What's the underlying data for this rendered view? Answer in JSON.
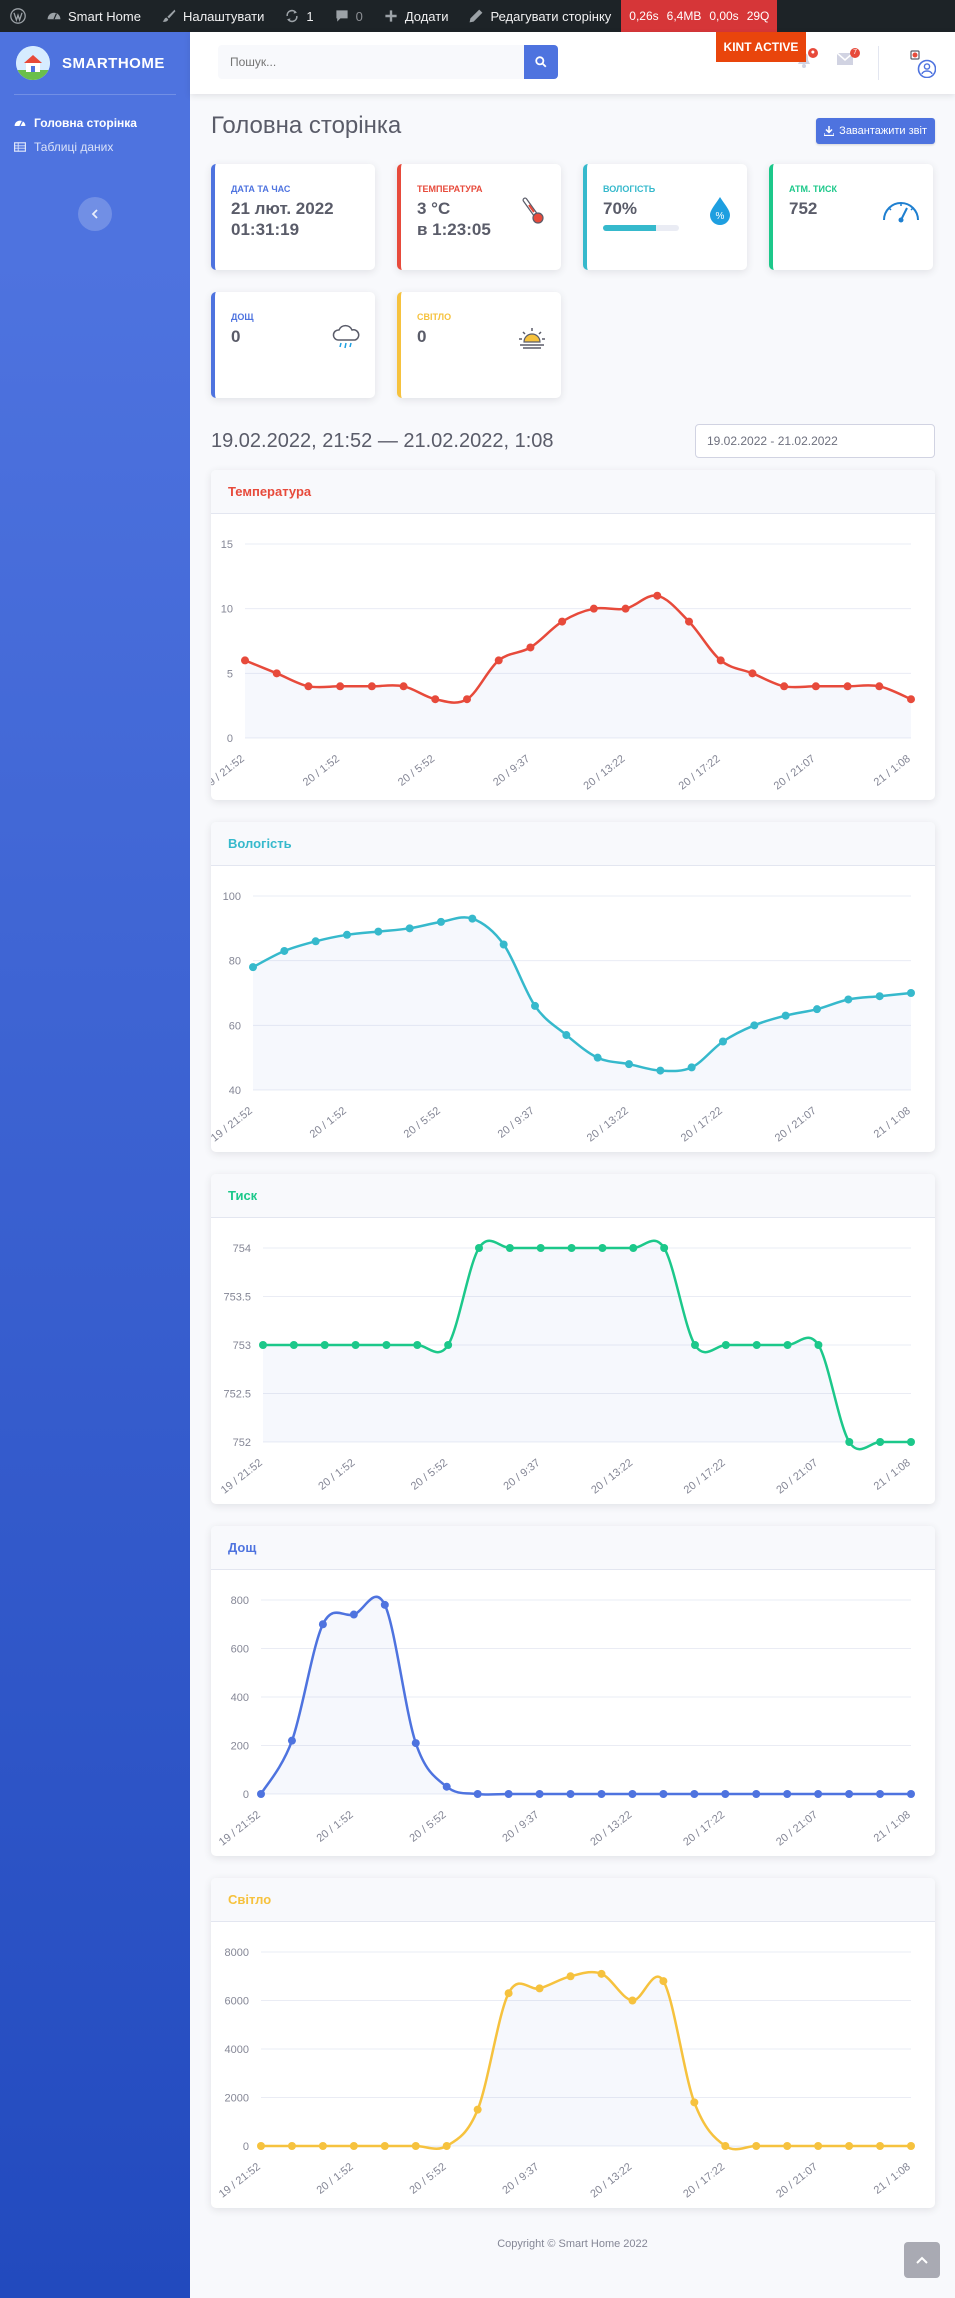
{
  "wp_admin_bar": {
    "site_name": "Smart Home",
    "customize": "Налаштувати",
    "updates_count": "1",
    "comments_count": "0",
    "add_new": "Додати",
    "edit_page": "Редагувати сторінку",
    "perf": [
      "0,26s",
      "6,4MB",
      "0,00s",
      "29Q"
    ]
  },
  "kint_badge": "KINT ACTIVE",
  "sidebar": {
    "brand": "SMARTHOME",
    "items": [
      {
        "label": "Головна сторінка",
        "icon": "tachometer-icon",
        "active": true
      },
      {
        "label": "Таблиці даних",
        "icon": "table-icon",
        "active": false
      }
    ]
  },
  "topbar": {
    "search_placeholder": "Пошук...",
    "alerts_badge": "●",
    "messages_badge": "7"
  },
  "page": {
    "title": "Головна сторінка",
    "report_button": "Завантажити звіт"
  },
  "cards": [
    {
      "label": "Дата та час",
      "line1": "21 лют. 2022",
      "line2": "01:31:19",
      "color": "#4e73df",
      "icon": "calendar-icon"
    },
    {
      "label": "Температура",
      "line1": "3 °C",
      "line2": "в 1:23:05",
      "color": "#e74a3b",
      "icon": "thermometer-icon"
    },
    {
      "label": "Вологість",
      "line1": "70%",
      "progress": 70,
      "color": "#36b9cc",
      "icon": "humidity-drop-icon"
    },
    {
      "label": "Атм. тиск",
      "line1": "752",
      "color": "#1cc88a",
      "icon": "pressure-gauge-icon"
    },
    {
      "label": "Дощ",
      "line1": "0",
      "color": "#4e73df",
      "icon": "rain-cloud-icon"
    },
    {
      "label": "Світло",
      "line1": "0",
      "color": "#f6c23e",
      "icon": "sun-icon"
    }
  ],
  "date_range": {
    "heading": "19.02.2022, 21:52 — 21.02.2022, 1:08",
    "input_value": "19.02.2022 - 21.02.2022"
  },
  "x_ticks": [
    "19 / 21:52",
    "20 / 1:52",
    "20 / 5:52",
    "20 / 9:37",
    "20 / 13:22",
    "20 / 17:22",
    "20 / 21:07",
    "21 / 1:08"
  ],
  "chart_data": [
    {
      "type": "line",
      "title": "Температура",
      "color": "#e74a3b",
      "ylim": [
        0,
        15
      ],
      "yticks": [
        "0",
        "5",
        "10",
        "15"
      ],
      "values": [
        6,
        5,
        4,
        4,
        4,
        4,
        3,
        3,
        6,
        7,
        9,
        10,
        10,
        11,
        9,
        6,
        5,
        4,
        4,
        4,
        4,
        3
      ]
    },
    {
      "type": "line",
      "title": "Вологість",
      "color": "#36b9cc",
      "ylim": [
        40,
        100
      ],
      "yticks": [
        "40",
        "60",
        "80",
        "100"
      ],
      "values": [
        78,
        83,
        86,
        88,
        89,
        90,
        92,
        93,
        85,
        66,
        57,
        50,
        48,
        46,
        47,
        55,
        60,
        63,
        65,
        68,
        69,
        70
      ]
    },
    {
      "type": "line",
      "title": "Тиск",
      "color": "#1cc88a",
      "ylim": [
        752,
        754
      ],
      "yticks": [
        "752",
        "752.5",
        "753",
        "753.5",
        "754"
      ],
      "values": [
        753,
        753,
        753,
        753,
        753,
        753,
        753,
        754,
        754,
        754,
        754,
        754,
        754,
        754,
        753,
        753,
        753,
        753,
        753,
        752,
        752,
        752
      ]
    },
    {
      "type": "line",
      "title": "Дощ",
      "color": "#4e73df",
      "ylim": [
        0,
        800
      ],
      "yticks": [
        "0",
        "200",
        "400",
        "600",
        "800"
      ],
      "values": [
        0,
        220,
        700,
        740,
        780,
        210,
        30,
        0,
        0,
        0,
        0,
        0,
        0,
        0,
        0,
        0,
        0,
        0,
        0,
        0,
        0,
        0
      ]
    },
    {
      "type": "line",
      "title": "Світло",
      "color": "#f6c23e",
      "ylim": [
        0,
        8000
      ],
      "yticks": [
        "0",
        "2000",
        "4000",
        "6000",
        "8000"
      ],
      "values": [
        0,
        0,
        0,
        0,
        0,
        0,
        0,
        1500,
        6300,
        6500,
        7000,
        7100,
        6000,
        6800,
        1800,
        0,
        0,
        0,
        0,
        0,
        0,
        0
      ]
    }
  ],
  "footer": "Copyright © Smart Home 2022"
}
